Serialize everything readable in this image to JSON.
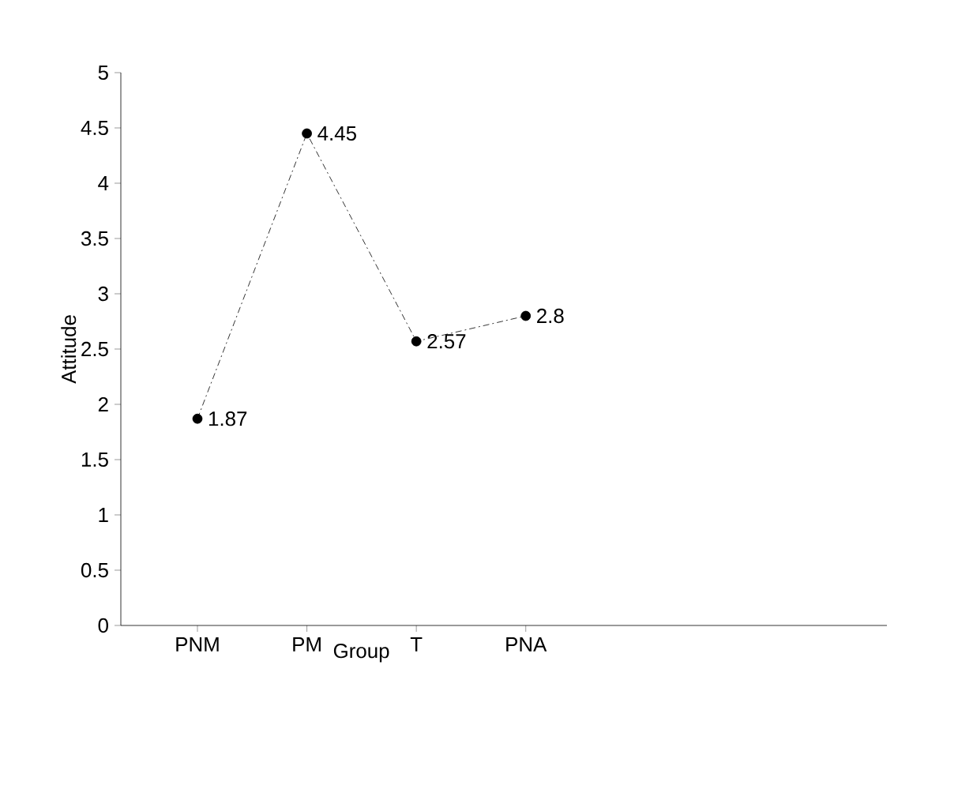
{
  "chart_data": {
    "type": "line",
    "xlabel": "Group",
    "ylabel": "Attitude",
    "categories": [
      "PNM",
      "PM",
      "T",
      "PNA"
    ],
    "values": [
      1.87,
      4.45,
      2.57,
      2.8
    ],
    "color": "#000000",
    "ylim": [
      0,
      5
    ],
    "yticks": [
      0,
      0.5,
      1,
      1.5,
      2,
      2.5,
      3,
      3.5,
      4,
      4.5,
      5
    ],
    "marker": "circle",
    "line_style": "dashed",
    "data_labels": true,
    "grid": false
  }
}
